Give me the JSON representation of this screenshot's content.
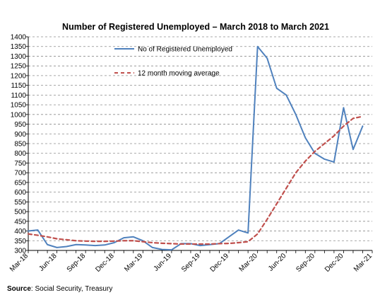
{
  "chart_data": {
    "type": "line",
    "title": "Number of Registered Unemployed – March 2018 to March 2021",
    "xlabel": "",
    "ylabel": "",
    "ylim": [
      300,
      1400
    ],
    "yticks": [
      300,
      350,
      400,
      450,
      500,
      550,
      600,
      650,
      700,
      750,
      800,
      850,
      900,
      950,
      1000,
      1050,
      1100,
      1150,
      1200,
      1250,
      1300,
      1350,
      1400
    ],
    "x": [
      "Mar-18",
      "Apr-18",
      "May-18",
      "Jun-18",
      "Jul-18",
      "Aug-18",
      "Sep-18",
      "Oct-18",
      "Nov-18",
      "Dec-18",
      "Jan-19",
      "Feb-19",
      "Mar-19",
      "Apr-19",
      "May-19",
      "Jun-19",
      "Jul-19",
      "Aug-19",
      "Sep-19",
      "Oct-19",
      "Nov-19",
      "Dec-19",
      "Jan-20",
      "Feb-20",
      "Mar-20",
      "Apr-20",
      "May-20",
      "Jun-20",
      "Jul-20",
      "Aug-20",
      "Sep-20",
      "Oct-20",
      "Nov-20",
      "Dec-20",
      "Jan-21",
      "Feb-21",
      "Mar-21"
    ],
    "xtick_labels": [
      "Mar-18",
      "Jun-18",
      "Sep-18",
      "Dec-18",
      "Mar-19",
      "Jun-19",
      "Sep-19",
      "Dec-19",
      "Mar-20",
      "Jun-20",
      "Sep-20",
      "Dec-20",
      "Mar-21"
    ],
    "grid": "horizontal dashed",
    "legend_position": "top-center",
    "series": [
      {
        "name": "No of Registered Unemployed",
        "style": "solid",
        "color": "#4F81BD",
        "values": [
          400,
          405,
          330,
          315,
          320,
          330,
          328,
          325,
          328,
          340,
          365,
          370,
          350,
          315,
          305,
          303,
          335,
          335,
          325,
          330,
          335,
          370,
          405,
          390,
          1350,
          1290,
          1135,
          1100,
          1000,
          880,
          800,
          770,
          755,
          1035,
          820,
          940,
          null
        ]
      },
      {
        "name": "12 month moving average",
        "style": "dashed",
        "color": "#C0504D",
        "values": [
          385,
          378,
          370,
          360,
          355,
          350,
          348,
          347,
          347,
          348,
          350,
          350,
          345,
          340,
          337,
          335,
          333,
          333,
          333,
          333,
          335,
          336,
          340,
          345,
          385,
          460,
          540,
          620,
          700,
          760,
          810,
          850,
          890,
          940,
          980,
          990,
          null
        ]
      }
    ]
  },
  "source": {
    "label": "Source",
    "text": ": Social Security, Treasury"
  }
}
